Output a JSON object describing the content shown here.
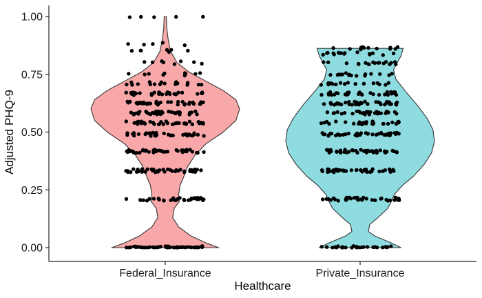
{
  "chart_data": {
    "type": "violin",
    "xlabel": "Healthcare",
    "ylabel": "Adjusted PHQ-9",
    "categories": [
      "Federal_Insurance",
      "Private_Insurance"
    ],
    "ylim": [
      0,
      1
    ],
    "yticks": [
      0,
      0.25,
      0.5,
      0.75,
      1
    ],
    "ytick_labels": [
      "0.00",
      "0.25",
      "0.50",
      "0.75",
      "1.00"
    ],
    "grid": false,
    "legend": "none",
    "series": [
      {
        "category": "Federal_Insurance",
        "fill": "#F8A8A8",
        "data_range": [
          0,
          1
        ],
        "density_profile": [
          {
            "y": 0.0,
            "d": 0.72
          },
          {
            "y": 0.02,
            "d": 0.55
          },
          {
            "y": 0.05,
            "d": 0.35
          },
          {
            "y": 0.09,
            "d": 0.18
          },
          {
            "y": 0.13,
            "d": 0.1
          },
          {
            "y": 0.17,
            "d": 0.12
          },
          {
            "y": 0.2,
            "d": 0.19
          },
          {
            "y": 0.23,
            "d": 0.18
          },
          {
            "y": 0.27,
            "d": 0.2
          },
          {
            "y": 0.3,
            "d": 0.24
          },
          {
            "y": 0.35,
            "d": 0.3
          },
          {
            "y": 0.4,
            "d": 0.4
          },
          {
            "y": 0.45,
            "d": 0.55
          },
          {
            "y": 0.5,
            "d": 0.78
          },
          {
            "y": 0.55,
            "d": 0.95
          },
          {
            "y": 0.6,
            "d": 1.0
          },
          {
            "y": 0.64,
            "d": 0.95
          },
          {
            "y": 0.68,
            "d": 0.78
          },
          {
            "y": 0.72,
            "d": 0.55
          },
          {
            "y": 0.76,
            "d": 0.32
          },
          {
            "y": 0.8,
            "d": 0.16
          },
          {
            "y": 0.85,
            "d": 0.07
          },
          {
            "y": 0.9,
            "d": 0.04
          },
          {
            "y": 0.95,
            "d": 0.02
          },
          {
            "y": 1.0,
            "d": 0.015
          }
        ],
        "point_clusters": [
          {
            "y": 0.0,
            "n": 55
          },
          {
            "y": 0.21,
            "n": 34
          },
          {
            "y": 0.333,
            "n": 42
          },
          {
            "y": 0.417,
            "n": 38
          },
          {
            "y": 0.49,
            "n": 36
          },
          {
            "y": 0.54,
            "n": 36
          },
          {
            "y": 0.583,
            "n": 38
          },
          {
            "y": 0.625,
            "n": 38
          },
          {
            "y": 0.667,
            "n": 30
          },
          {
            "y": 0.71,
            "n": 18
          },
          {
            "y": 0.75,
            "n": 10
          },
          {
            "y": 0.8,
            "n": 8
          },
          {
            "y": 0.85,
            "n": 7
          },
          {
            "y": 0.88,
            "n": 5
          },
          {
            "y": 1.0,
            "n": 5
          }
        ]
      },
      {
        "category": "Private_Insurance",
        "fill": "#8EDCE0",
        "data_range": [
          0,
          0.862
        ],
        "density_profile": [
          {
            "y": 0.0,
            "d": 0.55
          },
          {
            "y": 0.02,
            "d": 0.42
          },
          {
            "y": 0.05,
            "d": 0.2
          },
          {
            "y": 0.07,
            "d": 0.11
          },
          {
            "y": 0.1,
            "d": 0.13
          },
          {
            "y": 0.13,
            "d": 0.24
          },
          {
            "y": 0.17,
            "d": 0.37
          },
          {
            "y": 0.2,
            "d": 0.42
          },
          {
            "y": 0.23,
            "d": 0.46
          },
          {
            "y": 0.27,
            "d": 0.57
          },
          {
            "y": 0.31,
            "d": 0.72
          },
          {
            "y": 0.36,
            "d": 0.86
          },
          {
            "y": 0.41,
            "d": 0.96
          },
          {
            "y": 0.46,
            "d": 1.0
          },
          {
            "y": 0.51,
            "d": 0.98
          },
          {
            "y": 0.56,
            "d": 0.9
          },
          {
            "y": 0.62,
            "d": 0.76
          },
          {
            "y": 0.68,
            "d": 0.6
          },
          {
            "y": 0.73,
            "d": 0.48
          },
          {
            "y": 0.77,
            "d": 0.45
          },
          {
            "y": 0.8,
            "d": 0.5
          },
          {
            "y": 0.83,
            "d": 0.55
          },
          {
            "y": 0.862,
            "d": 0.58
          }
        ],
        "point_clusters": [
          {
            "y": 0.0,
            "n": 30
          },
          {
            "y": 0.21,
            "n": 38
          },
          {
            "y": 0.333,
            "n": 40
          },
          {
            "y": 0.417,
            "n": 42
          },
          {
            "y": 0.49,
            "n": 40
          },
          {
            "y": 0.54,
            "n": 30
          },
          {
            "y": 0.583,
            "n": 32
          },
          {
            "y": 0.625,
            "n": 36
          },
          {
            "y": 0.667,
            "n": 30
          },
          {
            "y": 0.71,
            "n": 16
          },
          {
            "y": 0.75,
            "n": 16
          },
          {
            "y": 0.8,
            "n": 18
          },
          {
            "y": 0.84,
            "n": 16
          },
          {
            "y": 0.862,
            "n": 12
          }
        ]
      }
    ]
  }
}
